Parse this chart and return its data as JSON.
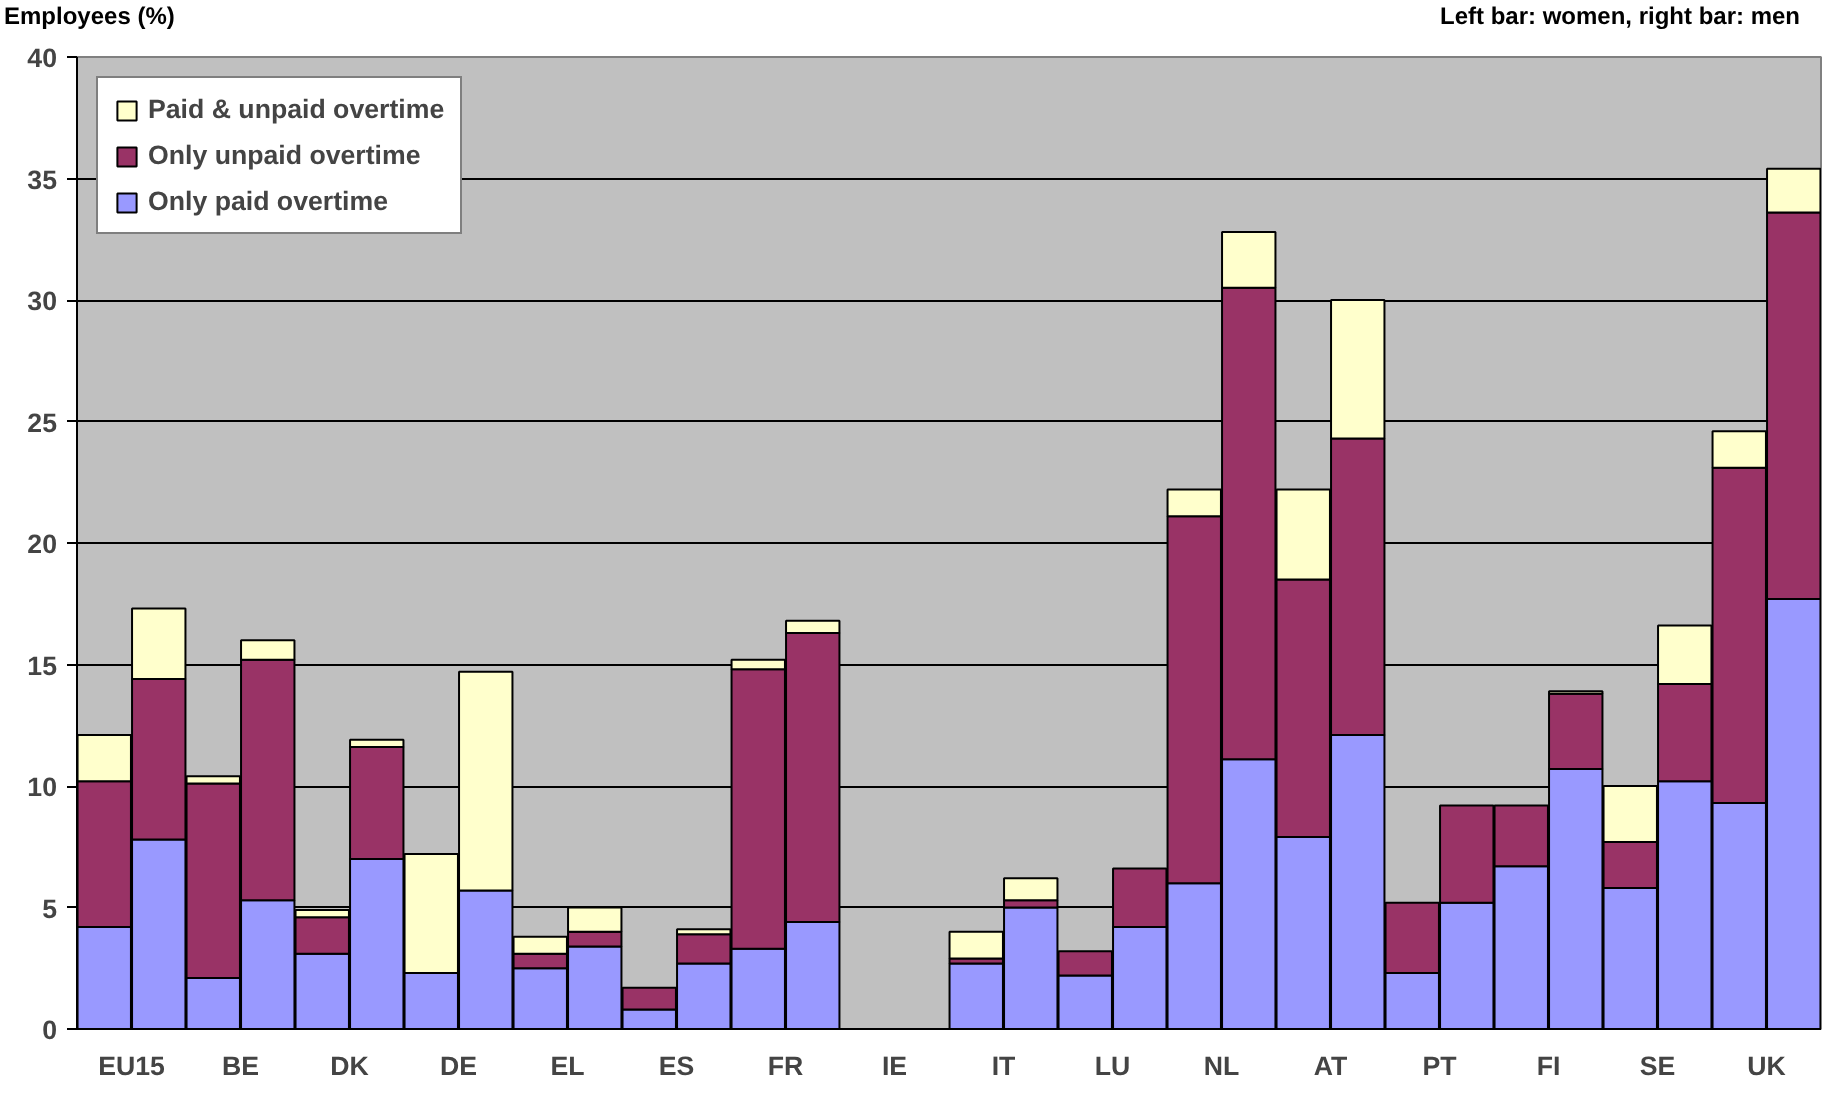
{
  "chart_data": {
    "type": "bar",
    "stacked": true,
    "ylabel": "Employees (%)",
    "annotations": [
      "Left bar: women, right bar: men"
    ],
    "categories": [
      "EU15",
      null,
      "BE",
      null,
      "DK",
      null,
      "DE",
      null,
      "EL",
      null,
      "ES",
      null,
      "FR",
      null,
      "IE",
      null,
      "IT",
      null,
      "LU",
      null,
      "NL",
      null,
      "AT",
      null,
      "PT",
      null,
      "FI",
      null,
      "SE",
      null,
      "UK",
      null
    ],
    "series": [
      {
        "name": "Only paid overtime",
        "color": "#9999ff",
        "values": [
          4.2,
          7.8,
          2.1,
          5.3,
          3.1,
          7.0,
          2.3,
          5.7,
          2.5,
          3.4,
          0.8,
          2.7,
          3.3,
          4.4,
          null,
          null,
          2.7,
          5.0,
          2.2,
          4.2,
          6.0,
          11.1,
          7.9,
          12.1,
          2.3,
          5.2,
          6.7,
          10.7,
          5.8,
          10.2,
          9.3,
          17.7
        ]
      },
      {
        "name": "Only unpaid overtime",
        "color": "#993366",
        "values": [
          6.0,
          6.6,
          8.0,
          9.9,
          1.5,
          4.6,
          null,
          null,
          0.6,
          0.6,
          0.9,
          1.2,
          11.5,
          11.9,
          null,
          null,
          0.2,
          0.3,
          1.0,
          2.4,
          15.1,
          19.4,
          10.6,
          12.2,
          2.9,
          4.0,
          2.5,
          3.1,
          1.9,
          4.0,
          13.8,
          15.9
        ]
      },
      {
        "name": "Paid & unpaid overtime",
        "color": "#ffffcc",
        "values": [
          1.9,
          2.9,
          0.3,
          0.8,
          0.3,
          0.3,
          4.9,
          9.0,
          0.7,
          1.0,
          null,
          0.2,
          0.4,
          0.5,
          null,
          null,
          1.1,
          0.9,
          null,
          null,
          1.1,
          2.3,
          3.7,
          5.7,
          null,
          null,
          null,
          0.1,
          2.3,
          2.4,
          1.5,
          1.8
        ]
      }
    ],
    "ylim": [
      0,
      40
    ],
    "yticks": [
      0,
      5,
      10,
      15,
      20,
      25,
      30,
      35,
      40
    ],
    "grid": "y",
    "legend": "top left"
  }
}
